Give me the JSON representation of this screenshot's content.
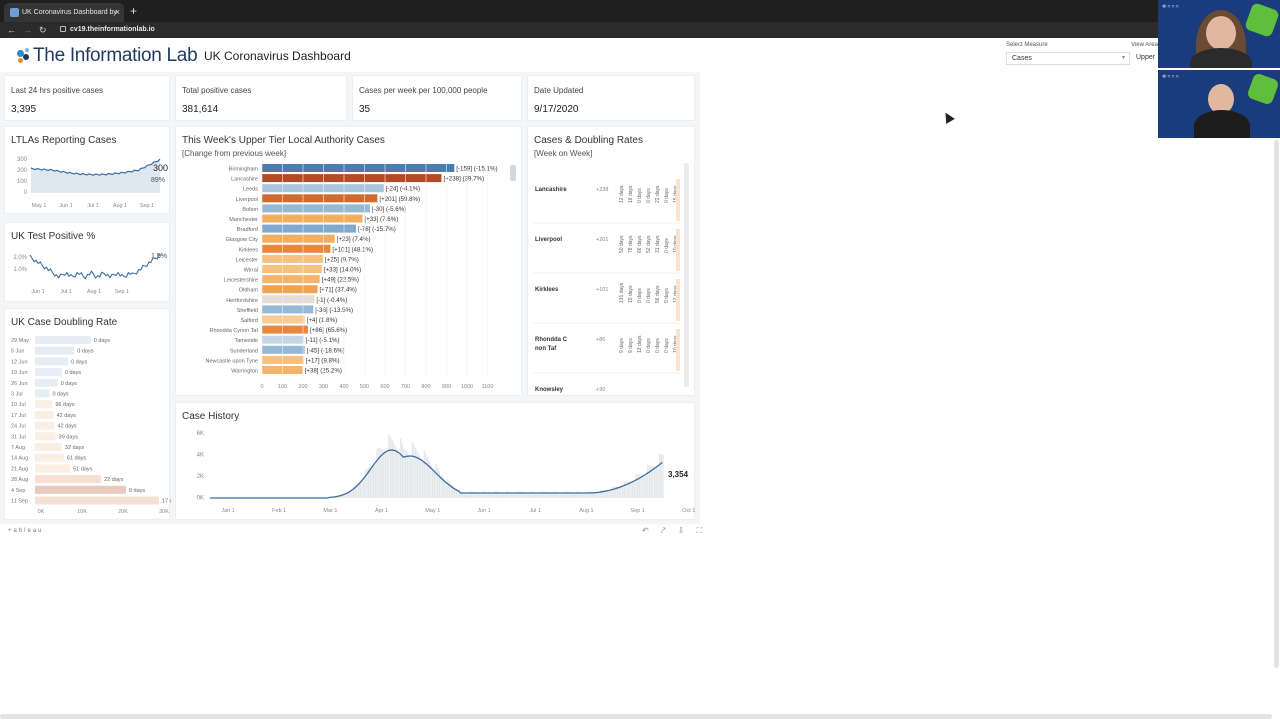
{
  "browser": {
    "tab_title": "UK Coronavirus Dashboard by",
    "close_glyph": "×",
    "newtab_glyph": "+",
    "url_host": "cv19.theinformationlab.io",
    "back": "←",
    "forward": "→",
    "reload": "↻"
  },
  "header": {
    "brand": "The Information Lab",
    "title": "UK Coronavirus Dashboard",
    "measure_label": "Select Measure",
    "measure_value": "Cases",
    "view_label": "View Area",
    "view_value": "Upper"
  },
  "kpis": [
    {
      "label": "Last 24 hrs positive cases",
      "value": "3,395"
    },
    {
      "label": "Total positive cases",
      "value": "381,614"
    },
    {
      "label": "Cases per week per 100,000 people",
      "value": "35"
    },
    {
      "label": "Date Updated",
      "value": "9/17/2020"
    }
  ],
  "ltla": {
    "title": "LTLAs Reporting Cases",
    "yticks": [
      "300",
      "200",
      "100",
      "0"
    ],
    "xticks": [
      "May 1",
      "Jun 1",
      "Jul 1",
      "Aug 1",
      "Sep 1"
    ],
    "value_label": "300",
    "pct_label": "89%"
  },
  "test_positive": {
    "title": "UK Test Positive %",
    "yticks": [
      "2.0%",
      "1.0%"
    ],
    "xticks": [
      "Jun 1",
      "Jul 1",
      "Aug 1",
      "Sep 1"
    ],
    "value_label": "1.5%"
  },
  "doubling": {
    "title": "UK Case Doubling Rate",
    "xticks": [
      "0K",
      "10K",
      "20K",
      "30K"
    ]
  },
  "utla": {
    "title": "This Week's Upper Tier Local Authority Cases",
    "subtitle": "[Change from previous week]",
    "xticks": [
      "0",
      "100",
      "200",
      "300",
      "400",
      "500",
      "600",
      "700",
      "800",
      "900",
      "1000",
      "1100"
    ]
  },
  "doubling_rates": {
    "title": "Cases & Doubling Rates",
    "subtitle": "[Week on Week]"
  },
  "history": {
    "title": "Case History",
    "yticks": [
      "6K",
      "4K",
      "2K",
      "0K"
    ],
    "xticks": [
      "Jan 1",
      "Feb 1",
      "Mar 1",
      "Apr 1",
      "May 1",
      "Jun 1",
      "Jul 1",
      "Aug 1",
      "Sep 1",
      "Oct 1"
    ],
    "last_value": "3,354"
  },
  "footer": {
    "tableau": "+ableau"
  },
  "chart_data": [
    {
      "type": "bar",
      "id": "utla",
      "categories": [
        "Birmingham",
        "Lancashire",
        "Leeds",
        "Liverpool",
        "Bolton",
        "Manchester",
        "Bradford",
        "Glasgow City",
        "Kirklees",
        "Leicester",
        "Wirral",
        "Leicestershire",
        "Oldham",
        "Hertfordshire",
        "Sheffield",
        "Salford",
        "Rhondda Cynon Taf",
        "Tameside",
        "Sunderland",
        "Newcastle upon Tyne",
        "Warrington"
      ],
      "values": [
        900,
        840,
        570,
        540,
        505,
        470,
        440,
        340,
        320,
        285,
        280,
        270,
        260,
        245,
        240,
        200,
        215,
        195,
        200,
        195,
        190
      ],
      "labels": [
        "[-159] (-15.1%)",
        "[+238] (39.7%)",
        "[-24] (-4.1%)",
        "[+201] (59.8%)",
        "[-30] (-5.6%)",
        "[+33] (7.6%)",
        "[-78] (-15.7%)",
        "[+23] (7.4%)",
        "[+101] (48.1%)",
        "[+25] (9.7%)",
        "[+33] (14.0%)",
        "[+49] (22.5%)",
        "[+71] (37.4%)",
        "[-1] (-0.4%)",
        "[-36] (-13.5%)",
        "[+4] (1.8%)",
        "[+86] (65.6%)",
        "[-11] (-5.1%)",
        "[-45] (-18.6%)",
        "[+17] (9.8%)",
        "[+38] (25.2%)"
      ],
      "colors": [
        "#4a7eb0",
        "#b54b26",
        "#a9c6dd",
        "#cf6a2c",
        "#95b8d6",
        "#f2ad5f",
        "#7fa9cf",
        "#f2ad5f",
        "#e7883e",
        "#f6c080",
        "#f6c080",
        "#f4b46c",
        "#f0a254",
        "#e3ddd6",
        "#95b8d6",
        "#f7cb94",
        "#e7883e",
        "#c4d7e8",
        "#95b8d6",
        "#f6c080",
        "#f4b46c"
      ],
      "xlim": [
        0,
        1100
      ]
    },
    {
      "type": "bar",
      "id": "doubling",
      "categories": [
        "29 May",
        "5 Jun",
        "12 Jun",
        "19 Jun",
        "26 Jun",
        "3 Jul",
        "10 Jul",
        "17 Jul",
        "24 Jul",
        "31 Jul",
        "7 Aug",
        "14 Aug",
        "21 Aug",
        "28 Aug",
        "4 Sep",
        "11 Sep"
      ],
      "values": [
        13500,
        9500,
        8000,
        6500,
        5500,
        3500,
        4200,
        4500,
        4700,
        5000,
        6500,
        7000,
        8500,
        16000,
        22000,
        30000
      ],
      "labels": [
        "0 days",
        "0 days",
        "0 days",
        "0 days",
        "0 days",
        "0 days",
        "96 days",
        "42 days",
        "42 days",
        "39 days",
        "32 days",
        "61 days",
        "51 days",
        "22 days",
        "9 days",
        "17 days"
      ],
      "xlim": [
        0,
        30000
      ]
    },
    {
      "type": "table",
      "id": "doubling_rates",
      "rows": [
        {
          "name": "Lancashire",
          "change": "+238",
          "days": [
            "12 days",
            "18 days",
            "0 days",
            "0 days",
            "22 days",
            "0 days",
            "15 days"
          ]
        },
        {
          "name": "Liverpool",
          "change": "+201",
          "days": [
            "50 days",
            "78 days",
            "66 days",
            "52 days",
            "31 days",
            "0 days",
            "10 days"
          ]
        },
        {
          "name": "Kirklees",
          "change": "+101",
          "days": [
            "131 days",
            "15 days",
            "0 days",
            "0 days",
            "56 days",
            "9 days",
            "12 days"
          ]
        },
        {
          "name": "Rhondda Cynon Taf",
          "change": "+86",
          "days": [
            "9 days",
            "9 days",
            "12 days",
            "0 days",
            "0 days",
            "0 days",
            "10 days"
          ]
        },
        {
          "name": "Knowsley",
          "change": "+90",
          "days": []
        }
      ]
    }
  ],
  "colors": {
    "accent": "#4a7eb0",
    "line": "#3d6da3",
    "bars_light": "#dfe7f0"
  }
}
